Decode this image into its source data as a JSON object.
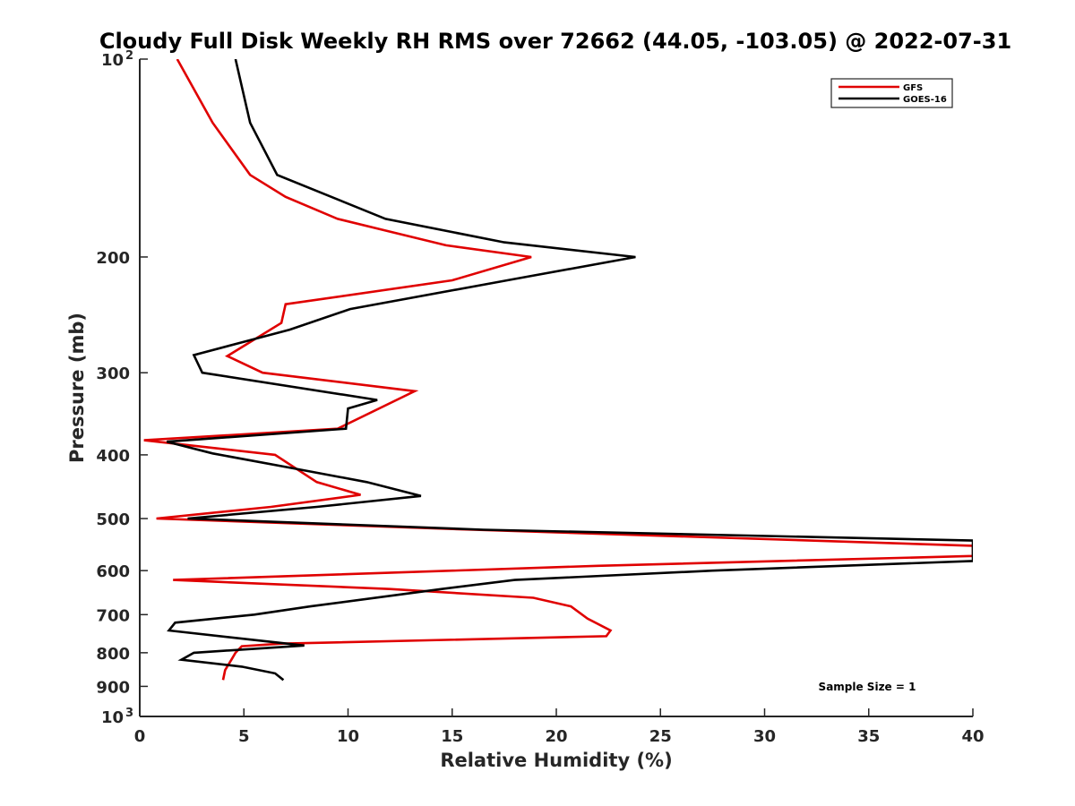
{
  "chart_data": {
    "type": "line",
    "title": "Cloudy Full Disk Weekly RH RMS over 72662 (44.05, -103.05) @ 2022-07-31",
    "xlabel": "Relative Humidity (%)",
    "ylabel": "Pressure (mb)",
    "xlim": [
      0,
      40
    ],
    "ylim": [
      100,
      1000
    ],
    "y_scale": "log",
    "y_reversed": true,
    "x_ticks": [
      "0",
      "5",
      "10",
      "15",
      "20",
      "25",
      "30",
      "35",
      "40"
    ],
    "y_ticks": [
      {
        "value": 100,
        "label": "10",
        "exp": "2"
      },
      {
        "value": 200,
        "label": "200"
      },
      {
        "value": 300,
        "label": "300"
      },
      {
        "value": 400,
        "label": "400"
      },
      {
        "value": 500,
        "label": "500"
      },
      {
        "value": 600,
        "label": "600"
      },
      {
        "value": 700,
        "label": "700"
      },
      {
        "value": 800,
        "label": "800"
      },
      {
        "value": 900,
        "label": "900"
      },
      {
        "value": 1000,
        "label": "10",
        "exp": "3"
      }
    ],
    "grid": false,
    "legend_position": "top-right",
    "annotation": "Sample Size = 1",
    "series": [
      {
        "name": "GFS",
        "color": "#e00000",
        "points": [
          [
            1.8,
            100
          ],
          [
            3.5,
            125
          ],
          [
            5.3,
            150
          ],
          [
            7.0,
            162
          ],
          [
            9.5,
            175
          ],
          [
            14.7,
            192
          ],
          [
            18.8,
            200
          ],
          [
            15.0,
            217
          ],
          [
            7.0,
            236
          ],
          [
            6.8,
            252
          ],
          [
            4.2,
            283
          ],
          [
            5.9,
            300
          ],
          [
            13.2,
            320
          ],
          [
            9.5,
            365
          ],
          [
            0.2,
            380
          ],
          [
            6.5,
            400
          ],
          [
            8.5,
            440
          ],
          [
            10.6,
            460
          ],
          [
            6.3,
            480
          ],
          [
            0.8,
            500
          ],
          [
            16.0,
            520
          ],
          [
            40.0,
            550
          ],
          [
            40.0,
            570
          ],
          [
            22.0,
            590
          ],
          [
            1.6,
            620
          ],
          [
            12.0,
            640
          ],
          [
            18.9,
            660
          ],
          [
            20.7,
            680
          ],
          [
            21.5,
            710
          ],
          [
            22.6,
            740
          ],
          [
            22.4,
            755
          ],
          [
            6.8,
            775
          ],
          [
            4.9,
            782
          ],
          [
            4.6,
            800
          ],
          [
            4.4,
            820
          ],
          [
            4.1,
            850
          ],
          [
            4.0,
            880
          ]
        ]
      },
      {
        "name": "GOES-16",
        "color": "#000000",
        "points": [
          [
            4.6,
            100
          ],
          [
            5.3,
            125
          ],
          [
            6.6,
            150
          ],
          [
            11.8,
            175
          ],
          [
            17.5,
            190
          ],
          [
            23.8,
            200
          ],
          [
            18.0,
            216
          ],
          [
            10.1,
            240
          ],
          [
            7.2,
            258
          ],
          [
            2.6,
            282
          ],
          [
            3.0,
            300
          ],
          [
            11.4,
            330
          ],
          [
            10.0,
            340
          ],
          [
            9.9,
            365
          ],
          [
            1.3,
            382
          ],
          [
            3.5,
            398
          ],
          [
            7.5,
            420
          ],
          [
            10.9,
            440
          ],
          [
            13.5,
            462
          ],
          [
            8.5,
            480
          ],
          [
            2.3,
            500
          ],
          [
            16.5,
            520
          ],
          [
            40.0,
            540
          ],
          [
            40.0,
            580
          ],
          [
            27.5,
            600
          ],
          [
            18.0,
            620
          ],
          [
            14.5,
            640
          ],
          [
            8.2,
            680
          ],
          [
            5.5,
            700
          ],
          [
            1.7,
            720
          ],
          [
            1.4,
            740
          ],
          [
            7.9,
            780
          ],
          [
            2.6,
            800
          ],
          [
            2.0,
            820
          ],
          [
            4.9,
            840
          ],
          [
            6.5,
            860
          ],
          [
            6.9,
            880
          ]
        ]
      }
    ]
  }
}
